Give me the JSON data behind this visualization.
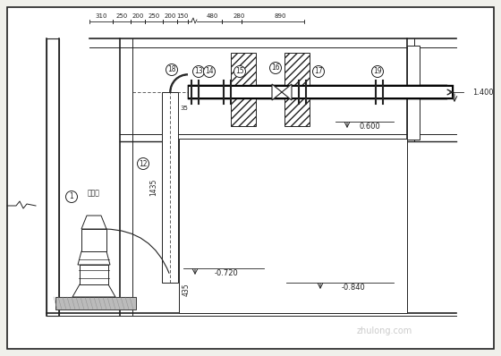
{
  "bg": "#f0f0eb",
  "lc": "#222222",
  "dim_top": [
    "310",
    "250",
    "200",
    "250",
    "200",
    "150",
    "480",
    "280",
    "890"
  ],
  "elev": {
    "e1": "1.400",
    "e2": "0.600",
    "e3": "-0.720",
    "e4": "-0.840"
  },
  "vdim": {
    "d1": "1435",
    "d2": "435",
    "d3": "35"
  },
  "nums": [
    "1",
    "12",
    "13",
    "14",
    "15",
    "16",
    "17",
    "18",
    "19"
  ],
  "pump_label": "污水泵",
  "watermark": "zhulong.com"
}
